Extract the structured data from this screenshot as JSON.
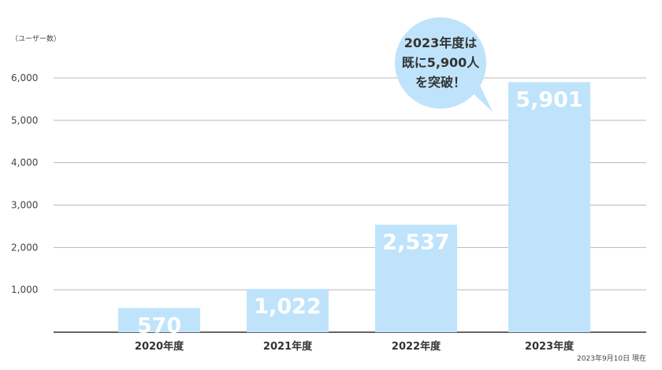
{
  "chart_data": {
    "type": "bar",
    "categories": [
      "2020年度",
      "2021年度",
      "2022年度",
      "2023年度"
    ],
    "values": [
      570,
      1022,
      2537,
      5901
    ],
    "value_labels": [
      "570",
      "1,022",
      "2,537",
      "5,901"
    ],
    "ylabel": "（ユーザー数）",
    "ylim": [
      0,
      6000
    ],
    "yticks": [
      1000,
      2000,
      3000,
      4000,
      5000,
      6000
    ],
    "ytick_labels": [
      "1,000",
      "2,000",
      "3,000",
      "4,000",
      "5,000",
      "6,000"
    ],
    "grid": true,
    "bar_color": "#bfe3fa",
    "grid_color": "#b8b8b8",
    "callout": {
      "lines": [
        "2023年度は",
        "既に5,900人",
        "を突破！"
      ],
      "color": "#bfe3fa",
      "attached_to": "2023年度"
    },
    "footnote": "2023年9月10日 現在"
  }
}
